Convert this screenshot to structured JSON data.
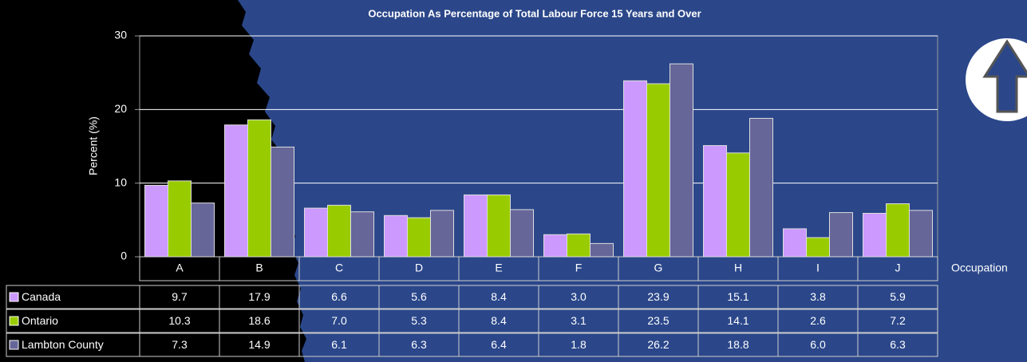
{
  "chart_data": {
    "type": "bar",
    "title": "Occupation As Percentage of Total Labour Force 15 Years and Over",
    "y_label": "Percent (%)",
    "x_label": "Occupation",
    "categories": [
      "A",
      "B",
      "C",
      "D",
      "E",
      "F",
      "G",
      "H",
      "I",
      "J"
    ],
    "series": [
      {
        "name": "Canada",
        "color": "#cc99ff",
        "values": [
          9.7,
          17.9,
          6.6,
          5.6,
          8.4,
          3.0,
          23.9,
          15.1,
          3.8,
          5.9
        ],
        "value_labels": [
          "9.7",
          "17.9",
          "6.6",
          "5.6",
          "8.4",
          "3.0",
          "23.9",
          "15.1",
          "3.8",
          "5.9"
        ]
      },
      {
        "name": "Ontario",
        "color": "#99cc00",
        "values": [
          10.3,
          18.6,
          7.0,
          5.3,
          8.4,
          3.1,
          23.5,
          14.1,
          2.6,
          7.2
        ],
        "value_labels": [
          "10.3",
          "18.6",
          "7.0",
          "5.3",
          "8.4",
          "3.1",
          "23.5",
          "14.1",
          "2.6",
          "7.2"
        ]
      },
      {
        "name": "Lambton County",
        "color": "#666699",
        "values": [
          7.3,
          14.9,
          6.1,
          6.3,
          6.4,
          1.8,
          26.2,
          18.8,
          6.0,
          6.3
        ],
        "value_labels": [
          "7.3",
          "14.9",
          "6.1",
          "6.3",
          "6.4",
          "1.8",
          "26.2",
          "18.8",
          "6.0",
          "6.3"
        ]
      }
    ],
    "ylim": [
      0,
      30
    ],
    "yticks": [
      0,
      10,
      20,
      30
    ],
    "grid": true
  }
}
